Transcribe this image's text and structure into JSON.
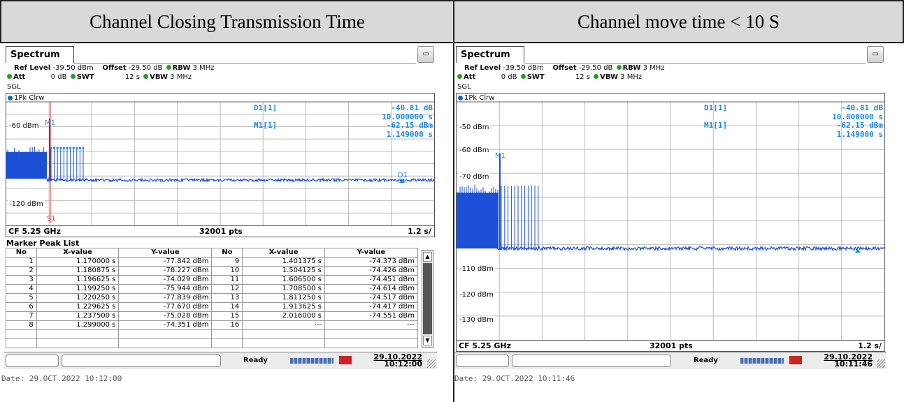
{
  "headers": {
    "left": "Channel Closing Transmission Time",
    "right": "Channel move time < 10 S"
  },
  "common": {
    "tab": "Spectrum",
    "ref_level_label": "Ref Level",
    "ref_level": "-39.50 dBm",
    "offset_label": "Offset",
    "offset": "-29.50 dB",
    "rbw_label": "RBW",
    "rbw": "3 MHz",
    "att_label": "Att",
    "att": "0 dB",
    "swt_label": "SWT",
    "swt": "12 s",
    "vbw_label": "VBW",
    "vbw": "3 MHz",
    "sgl": "SGL",
    "trace": "1Pk Clrw",
    "d1_label": "D1[1]",
    "d1_value": "-40.81 dB",
    "d1_time": "10.000000 s",
    "m1_label": "M1[1]",
    "m1_value": "-62.15 dBm",
    "m1_time": "1.149000 s",
    "cf": "CF 5.25 GHz",
    "pts": "32001 pts",
    "span": "1.2 s/",
    "ready": "Ready",
    "marker_m1": "M1",
    "marker_d1": "D1",
    "marker_s1": "S1"
  },
  "left": {
    "y_labels": [
      "-60 dBm",
      "-120 dBm"
    ],
    "marker_table_title": "Marker Peak List",
    "columns": [
      "No",
      "X-value",
      "Y-value",
      "No",
      "X-value",
      "Y-value"
    ],
    "rows": [
      [
        "1",
        "1.170000 s",
        "-77.842 dBm",
        "9",
        "1.401375 s",
        "-74.373 dBm"
      ],
      [
        "2",
        "1.180875 s",
        "-78.227 dBm",
        "10",
        "1.504125 s",
        "-74.426 dBm"
      ],
      [
        "3",
        "1.196625 s",
        "-74.029 dBm",
        "11",
        "1.606500 s",
        "-74.451 dBm"
      ],
      [
        "4",
        "1.199250 s",
        "-75.944 dBm",
        "12",
        "1.708500 s",
        "-74.614 dBm"
      ],
      [
        "5",
        "1.220250 s",
        "-77.839 dBm",
        "13",
        "1.811250 s",
        "-74.517 dBm"
      ],
      [
        "6",
        "1.229625 s",
        "-77.670 dBm",
        "14",
        "1.913625 s",
        "-74.417 dBm"
      ],
      [
        "7",
        "1.237500 s",
        "-75.028 dBm",
        "15",
        "2.016000 s",
        "-74.551 dBm"
      ],
      [
        "8",
        "1.299000 s",
        "-74.351 dBm",
        "16",
        "---",
        "---"
      ]
    ],
    "date_top": "29.10.2022",
    "time_top": "10:12:00",
    "dateline": "Date: 29.OCT.2022  10:12:00"
  },
  "right": {
    "y_labels": [
      "-50 dBm",
      "-60 dBm",
      "-70 dBm",
      "-110 dBm",
      "-120 dBm",
      "-130 dBm"
    ],
    "date_top": "29.10.2022",
    "time_top": "10:11:46",
    "dateline": "Date: 29.OCT.2022  10:11:46"
  },
  "colors": {
    "trace": "#1a4fd6",
    "marker_text": "#1e88e5",
    "sgl_line": "#d33"
  }
}
